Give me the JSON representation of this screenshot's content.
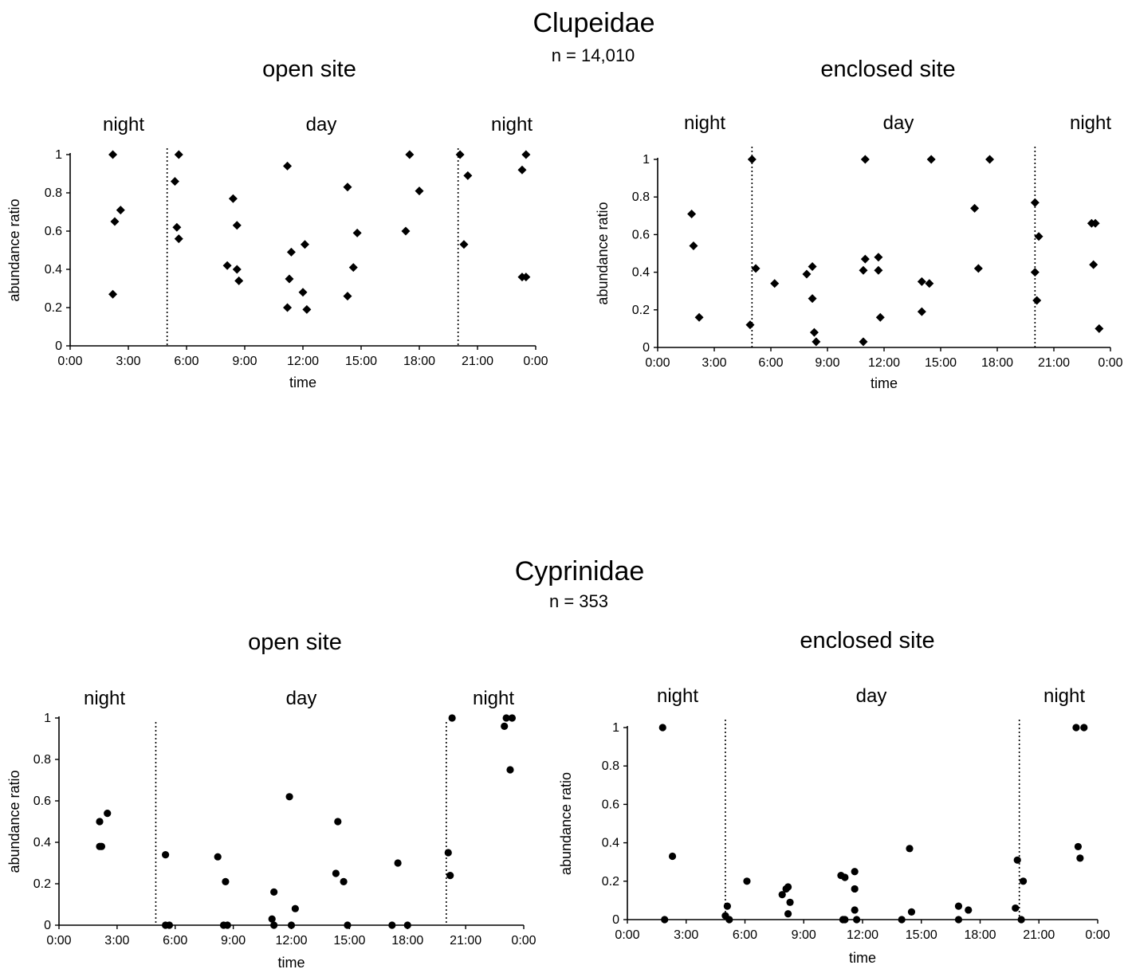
{
  "figures": [
    {
      "title": "Clupeidae",
      "n": "n = 14,010"
    },
    {
      "title": "Cyprinidae",
      "n": "n = 353"
    }
  ],
  "chart_data": [
    {
      "type": "scatter",
      "figure": "Clupeidae",
      "title": "open site",
      "xlabel": "time",
      "ylabel": "abundance ratio",
      "xlim": [
        0,
        24
      ],
      "ylim": [
        0,
        1
      ],
      "x_ticks": [
        "0:00",
        "3:00",
        "6:00",
        "9:00",
        "12:00",
        "15:00",
        "18:00",
        "21:00",
        "0:00"
      ],
      "y_ticks": [
        "0",
        "0.2",
        "0.4",
        "0.6",
        "0.8",
        "1"
      ],
      "marker": "diamond",
      "period_labels": [
        "night",
        "day",
        "night"
      ],
      "period_boundaries": [
        5,
        20
      ],
      "points": [
        [
          2.2,
          1.0
        ],
        [
          2.3,
          0.65
        ],
        [
          2.6,
          0.71
        ],
        [
          2.2,
          0.27
        ],
        [
          5.4,
          0.86
        ],
        [
          5.6,
          1.0
        ],
        [
          5.5,
          0.62
        ],
        [
          5.6,
          0.56
        ],
        [
          8.1,
          0.42
        ],
        [
          8.4,
          0.77
        ],
        [
          8.6,
          0.63
        ],
        [
          8.6,
          0.4
        ],
        [
          8.7,
          0.34
        ],
        [
          11.2,
          0.94
        ],
        [
          11.3,
          0.35
        ],
        [
          11.4,
          0.49
        ],
        [
          11.2,
          0.2
        ],
        [
          12.0,
          0.28
        ],
        [
          12.1,
          0.53
        ],
        [
          12.2,
          0.19
        ],
        [
          14.3,
          0.83
        ],
        [
          14.3,
          0.26
        ],
        [
          14.6,
          0.41
        ],
        [
          14.8,
          0.59
        ],
        [
          17.3,
          0.6
        ],
        [
          17.5,
          1.0
        ],
        [
          18.0,
          0.81
        ],
        [
          20.1,
          1.0
        ],
        [
          20.5,
          0.89
        ],
        [
          20.3,
          0.53
        ],
        [
          23.3,
          0.92
        ],
        [
          23.5,
          1.0
        ],
        [
          23.3,
          0.36
        ],
        [
          23.5,
          0.36
        ]
      ]
    },
    {
      "type": "scatter",
      "figure": "Clupeidae",
      "title": "enclosed site",
      "xlabel": "time",
      "ylabel": "abundance ratio",
      "xlim": [
        0,
        24
      ],
      "ylim": [
        0,
        1
      ],
      "x_ticks": [
        "0:00",
        "3:00",
        "6:00",
        "9:00",
        "12:00",
        "15:00",
        "18:00",
        "21:00",
        "0:00"
      ],
      "y_ticks": [
        "0",
        "0.2",
        "0.4",
        "0.6",
        "0.8",
        "1"
      ],
      "marker": "diamond",
      "period_labels": [
        "night",
        "day",
        "night"
      ],
      "period_boundaries": [
        5,
        20
      ],
      "points": [
        [
          1.8,
          0.71
        ],
        [
          1.9,
          0.54
        ],
        [
          2.2,
          0.16
        ],
        [
          4.9,
          0.12
        ],
        [
          5.0,
          1.0
        ],
        [
          5.2,
          0.42
        ],
        [
          6.2,
          0.34
        ],
        [
          7.9,
          0.39
        ],
        [
          8.2,
          0.43
        ],
        [
          8.2,
          0.26
        ],
        [
          8.3,
          0.08
        ],
        [
          8.4,
          0.03
        ],
        [
          10.9,
          0.41
        ],
        [
          11.0,
          0.47
        ],
        [
          11.0,
          1.0
        ],
        [
          10.9,
          0.03
        ],
        [
          11.7,
          0.48
        ],
        [
          11.7,
          0.41
        ],
        [
          11.8,
          0.16
        ],
        [
          14.0,
          0.35
        ],
        [
          14.0,
          0.19
        ],
        [
          14.4,
          0.34
        ],
        [
          14.5,
          1.0
        ],
        [
          16.8,
          0.74
        ],
        [
          17.0,
          0.42
        ],
        [
          17.6,
          1.0
        ],
        [
          20.0,
          0.77
        ],
        [
          20.0,
          0.4
        ],
        [
          20.1,
          0.25
        ],
        [
          20.2,
          0.59
        ],
        [
          23.0,
          0.66
        ],
        [
          23.2,
          0.66
        ],
        [
          23.1,
          0.44
        ],
        [
          23.4,
          0.1
        ]
      ]
    },
    {
      "type": "scatter",
      "figure": "Cyprinidae",
      "title": "open site",
      "xlabel": "time",
      "ylabel": "abundance ratio",
      "xlim": [
        0,
        24
      ],
      "ylim": [
        0,
        1
      ],
      "x_ticks": [
        "0:00",
        "3:00",
        "6:00",
        "9:00",
        "12:00",
        "15:00",
        "18:00",
        "21:00",
        "0:00"
      ],
      "y_ticks": [
        "0",
        "0.2",
        "0.4",
        "0.6",
        "0.8",
        "1"
      ],
      "marker": "circle",
      "period_labels": [
        "night",
        "day",
        "night"
      ],
      "period_boundaries": [
        5,
        20
      ],
      "points": [
        [
          2.1,
          0.5
        ],
        [
          2.5,
          0.54
        ],
        [
          2.1,
          0.38
        ],
        [
          2.2,
          0.38
        ],
        [
          5.5,
          0.34
        ],
        [
          5.5,
          0.0
        ],
        [
          5.7,
          0.0
        ],
        [
          8.2,
          0.33
        ],
        [
          8.6,
          0.21
        ],
        [
          8.5,
          0.0
        ],
        [
          8.7,
          0.0
        ],
        [
          11.0,
          0.03
        ],
        [
          11.1,
          0.16
        ],
        [
          11.1,
          0.0
        ],
        [
          11.9,
          0.62
        ],
        [
          12.0,
          0.0
        ],
        [
          12.2,
          0.08
        ],
        [
          14.4,
          0.5
        ],
        [
          14.3,
          0.25
        ],
        [
          14.7,
          0.21
        ],
        [
          14.9,
          0.0
        ],
        [
          17.2,
          0.0
        ],
        [
          17.5,
          0.3
        ],
        [
          18.0,
          0.0
        ],
        [
          20.1,
          0.35
        ],
        [
          20.3,
          1.0
        ],
        [
          20.2,
          0.24
        ],
        [
          23.0,
          0.96
        ],
        [
          23.1,
          1.0
        ],
        [
          23.4,
          1.0
        ],
        [
          23.3,
          0.75
        ]
      ]
    },
    {
      "type": "scatter",
      "figure": "Cyprinidae",
      "title": "enclosed site",
      "xlabel": "time",
      "ylabel": "abundance ratio",
      "xlim": [
        0,
        24
      ],
      "ylim": [
        0,
        1
      ],
      "x_ticks": [
        "0:00",
        "3:00",
        "6:00",
        "9:00",
        "12:00",
        "15:00",
        "18:00",
        "21:00",
        "0:00"
      ],
      "y_ticks": [
        "0",
        "0.2",
        "0.4",
        "0.6",
        "0.8",
        "1"
      ],
      "marker": "circle",
      "period_labels": [
        "night",
        "day",
        "night"
      ],
      "period_boundaries": [
        5,
        20
      ],
      "points": [
        [
          1.8,
          1.0
        ],
        [
          1.9,
          0.0
        ],
        [
          2.3,
          0.33
        ],
        [
          5.0,
          0.02
        ],
        [
          5.1,
          0.07
        ],
        [
          5.2,
          0.0
        ],
        [
          6.1,
          0.2
        ],
        [
          7.9,
          0.13
        ],
        [
          8.1,
          0.16
        ],
        [
          8.2,
          0.17
        ],
        [
          8.3,
          0.09
        ],
        [
          8.2,
          0.03
        ],
        [
          10.9,
          0.23
        ],
        [
          11.0,
          0.0
        ],
        [
          11.1,
          0.0
        ],
        [
          11.1,
          0.22
        ],
        [
          11.6,
          0.25
        ],
        [
          11.6,
          0.16
        ],
        [
          11.6,
          0.05
        ],
        [
          11.7,
          0.0
        ],
        [
          14.0,
          0.0
        ],
        [
          14.4,
          0.37
        ],
        [
          14.5,
          0.04
        ],
        [
          16.9,
          0.07
        ],
        [
          16.9,
          0.0
        ],
        [
          17.4,
          0.05
        ],
        [
          19.8,
          0.06
        ],
        [
          19.9,
          0.31
        ],
        [
          20.1,
          0.0
        ],
        [
          20.2,
          0.2
        ],
        [
          22.9,
          1.0
        ],
        [
          23.3,
          1.0
        ],
        [
          23.0,
          0.38
        ],
        [
          23.1,
          0.32
        ]
      ]
    }
  ]
}
